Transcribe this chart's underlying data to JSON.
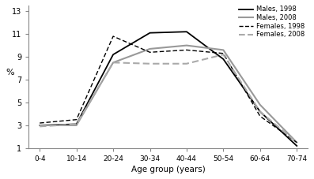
{
  "age_groups": [
    "0-4",
    "10-14",
    "20-24",
    "30-34",
    "40-44",
    "50-54",
    "60-64",
    "70-74"
  ],
  "males_1998": [
    3.0,
    3.1,
    9.2,
    11.1,
    11.2,
    8.8,
    4.2,
    1.2
  ],
  "males_2008": [
    3.0,
    3.0,
    8.5,
    9.7,
    10.0,
    9.6,
    4.8,
    1.5
  ],
  "females_1998": [
    3.2,
    3.5,
    10.8,
    9.4,
    9.6,
    9.3,
    3.8,
    1.5
  ],
  "females_2008": [
    2.9,
    3.1,
    8.5,
    8.4,
    8.4,
    9.2,
    4.2,
    1.5
  ],
  "males_1998_color": "#000000",
  "males_2008_color": "#999999",
  "females_1998_color": "#000000",
  "females_2008_color": "#aaaaaa",
  "ylabel": "%",
  "xlabel": "Age group (years)",
  "yticks": [
    1,
    3,
    5,
    7,
    9,
    11,
    13
  ],
  "ylim": [
    1,
    13.5
  ],
  "legend_labels": [
    "Males, 1998",
    "Males, 2008",
    "Females, 1998",
    "Females, 2008"
  ]
}
